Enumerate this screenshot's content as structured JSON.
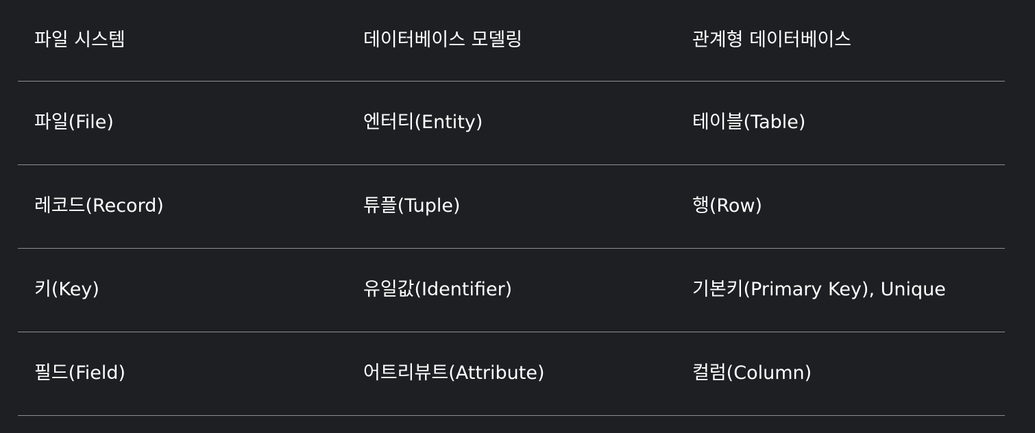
{
  "table": {
    "headers": [
      "파일 시스템",
      "데이터베이스 모델링",
      "관계형 데이터베이스"
    ],
    "rows": [
      [
        "파일(File)",
        "엔터티(Entity)",
        "테이블(Table)"
      ],
      [
        "레코드(Record)",
        "튜플(Tuple)",
        "행(Row)"
      ],
      [
        "키(Key)",
        "유일값(Identifier)",
        "기본키(Primary Key), Unique"
      ],
      [
        "필드(Field)",
        "어트리뷰트(Attribute)",
        "컬럼(Column)"
      ]
    ]
  },
  "colors": {
    "background": "#1e1f22",
    "text": "#ffffff",
    "divider": "#8e8f93"
  }
}
